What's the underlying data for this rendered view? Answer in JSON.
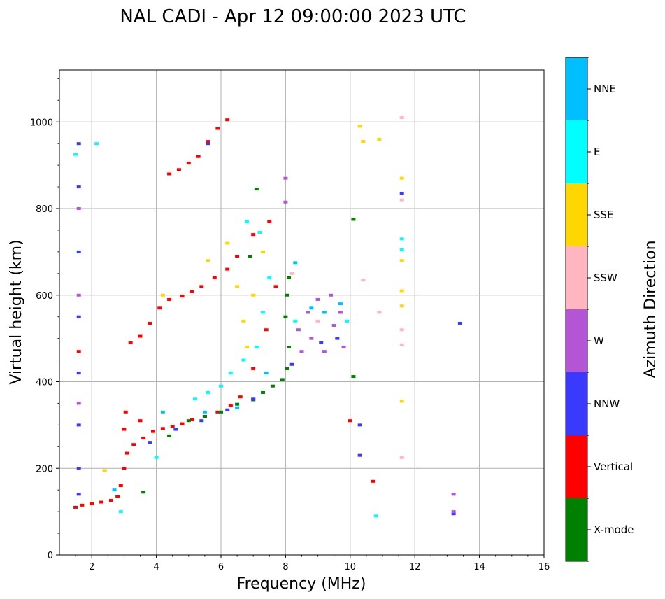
{
  "chart_data": {
    "type": "scatter",
    "title": "NAL CADI - Apr 12 09:00:00 2023 UTC",
    "xlabel": "Frequency (MHz)",
    "ylabel": "Virtual height (km)",
    "xlim": [
      1,
      16
    ],
    "ylim": [
      0,
      1120
    ],
    "xticks": [
      2,
      4,
      6,
      8,
      10,
      12,
      14,
      16
    ],
    "yticks": [
      0,
      200,
      400,
      600,
      800,
      1000
    ],
    "grid": true,
    "colorbar": {
      "label": "Azimuth Direction",
      "categories": [
        {
          "name": "X-mode",
          "color": "#008000"
        },
        {
          "name": "Vertical",
          "color": "#ff0000"
        },
        {
          "name": "NNW",
          "color": "#3a3aff"
        },
        {
          "name": "W",
          "color": "#b455d6"
        },
        {
          "name": "SSW",
          "color": "#ffb6c1"
        },
        {
          "name": "SSE",
          "color": "#ffd700"
        },
        {
          "name": "E",
          "color": "#00ffff"
        },
        {
          "name": "NNE",
          "color": "#00bfff"
        }
      ]
    },
    "traces": [
      {
        "direction": "Vertical",
        "points": [
          [
            1.5,
            110
          ],
          [
            1.7,
            115
          ],
          [
            2.0,
            118
          ],
          [
            2.3,
            122
          ],
          [
            2.6,
            126
          ],
          [
            2.8,
            135
          ],
          [
            2.9,
            160
          ],
          [
            3.0,
            200
          ],
          [
            3.1,
            235
          ],
          [
            3.3,
            255
          ],
          [
            3.6,
            270
          ],
          [
            3.9,
            285
          ],
          [
            4.2,
            292
          ],
          [
            4.5,
            297
          ],
          [
            4.8,
            303
          ],
          [
            5.1,
            312
          ],
          [
            5.5,
            320
          ],
          [
            5.9,
            330
          ],
          [
            6.3,
            345
          ],
          [
            6.6,
            365
          ],
          [
            7.0,
            430
          ],
          [
            7.4,
            520
          ],
          [
            7.7,
            620
          ],
          [
            3.2,
            490
          ],
          [
            3.5,
            505
          ],
          [
            3.8,
            535
          ],
          [
            4.1,
            570
          ],
          [
            4.4,
            590
          ],
          [
            4.8,
            598
          ],
          [
            5.1,
            608
          ],
          [
            5.4,
            620
          ],
          [
            5.8,
            640
          ],
          [
            6.2,
            660
          ],
          [
            6.5,
            690
          ],
          [
            7.0,
            740
          ],
          [
            7.5,
            770
          ],
          [
            4.4,
            880
          ],
          [
            4.7,
            890
          ],
          [
            5.0,
            905
          ],
          [
            5.3,
            920
          ],
          [
            5.6,
            955
          ],
          [
            5.9,
            985
          ],
          [
            6.2,
            1005
          ],
          [
            3.0,
            290
          ],
          [
            3.05,
            330
          ],
          [
            3.5,
            310
          ],
          [
            10.0,
            310
          ],
          [
            10.7,
            170
          ],
          [
            1.6,
            470
          ]
        ]
      },
      {
        "direction": "X-mode",
        "points": [
          [
            3.6,
            145
          ],
          [
            4.4,
            275
          ],
          [
            5.0,
            310
          ],
          [
            5.5,
            320
          ],
          [
            6.0,
            330
          ],
          [
            6.5,
            348
          ],
          [
            7.0,
            358
          ],
          [
            7.3,
            375
          ],
          [
            7.6,
            390
          ],
          [
            7.9,
            405
          ],
          [
            8.05,
            430
          ],
          [
            8.1,
            480
          ],
          [
            8.0,
            550
          ],
          [
            8.05,
            600
          ],
          [
            8.1,
            640
          ],
          [
            6.9,
            690
          ],
          [
            7.1,
            845
          ],
          [
            10.1,
            775
          ],
          [
            10.1,
            412
          ]
        ]
      },
      {
        "direction": "NNW",
        "points": [
          [
            1.6,
            140
          ],
          [
            1.6,
            200
          ],
          [
            1.6,
            300
          ],
          [
            1.6,
            420
          ],
          [
            1.6,
            550
          ],
          [
            1.6,
            700
          ],
          [
            1.6,
            850
          ],
          [
            1.6,
            950
          ],
          [
            3.8,
            260
          ],
          [
            4.6,
            290
          ],
          [
            5.4,
            310
          ],
          [
            6.2,
            335
          ],
          [
            7.0,
            360
          ],
          [
            8.2,
            440
          ],
          [
            9.1,
            490
          ],
          [
            9.6,
            500
          ],
          [
            10.3,
            300
          ],
          [
            10.3,
            230
          ],
          [
            13.2,
            95
          ],
          [
            13.4,
            535
          ],
          [
            5.6,
            950
          ],
          [
            11.6,
            835
          ]
        ]
      },
      {
        "direction": "W",
        "points": [
          [
            1.6,
            350
          ],
          [
            1.6,
            600
          ],
          [
            1.6,
            800
          ],
          [
            8.4,
            520
          ],
          [
            8.7,
            560
          ],
          [
            9.0,
            590
          ],
          [
            9.4,
            600
          ],
          [
            9.7,
            560
          ],
          [
            9.8,
            480
          ],
          [
            9.2,
            470
          ],
          [
            8.8,
            500
          ],
          [
            8.5,
            470
          ],
          [
            9.5,
            530
          ],
          [
            13.2,
            140
          ],
          [
            13.2,
            100
          ],
          [
            8.0,
            870
          ],
          [
            8.0,
            815
          ]
        ]
      },
      {
        "direction": "SSW",
        "points": [
          [
            8.2,
            650
          ],
          [
            9.0,
            540
          ],
          [
            10.4,
            635
          ],
          [
            10.9,
            560
          ],
          [
            11.6,
            1010
          ],
          [
            11.6,
            820
          ],
          [
            11.6,
            520
          ],
          [
            11.6,
            485
          ],
          [
            11.6,
            225
          ]
        ]
      },
      {
        "direction": "SSE",
        "points": [
          [
            6.2,
            720
          ],
          [
            6.5,
            620
          ],
          [
            6.8,
            480
          ],
          [
            6.7,
            540
          ],
          [
            7.0,
            600
          ],
          [
            7.3,
            700
          ],
          [
            4.2,
            600
          ],
          [
            5.6,
            680
          ],
          [
            10.3,
            990
          ],
          [
            10.4,
            955
          ],
          [
            10.9,
            960
          ],
          [
            11.6,
            870
          ],
          [
            11.6,
            680
          ],
          [
            11.6,
            610
          ],
          [
            11.6,
            575
          ],
          [
            11.6,
            355
          ],
          [
            2.4,
            195
          ]
        ]
      },
      {
        "direction": "E",
        "points": [
          [
            5.2,
            360
          ],
          [
            5.6,
            375
          ],
          [
            6.0,
            390
          ],
          [
            6.3,
            420
          ],
          [
            6.7,
            450
          ],
          [
            7.1,
            480
          ],
          [
            7.3,
            560
          ],
          [
            7.5,
            640
          ],
          [
            6.8,
            770
          ],
          [
            7.2,
            745
          ],
          [
            8.3,
            540
          ],
          [
            9.9,
            540
          ],
          [
            4.0,
            225
          ],
          [
            2.9,
            100
          ],
          [
            1.5,
            925
          ],
          [
            2.15,
            950
          ],
          [
            10.8,
            90
          ],
          [
            11.6,
            730
          ],
          [
            11.6,
            705
          ]
        ]
      },
      {
        "direction": "NNE",
        "points": [
          [
            2.7,
            150
          ],
          [
            4.2,
            330
          ],
          [
            5.5,
            330
          ],
          [
            6.5,
            340
          ],
          [
            7.4,
            420
          ],
          [
            8.3,
            675
          ],
          [
            8.8,
            570
          ],
          [
            9.2,
            560
          ],
          [
            9.7,
            580
          ]
        ]
      }
    ]
  }
}
